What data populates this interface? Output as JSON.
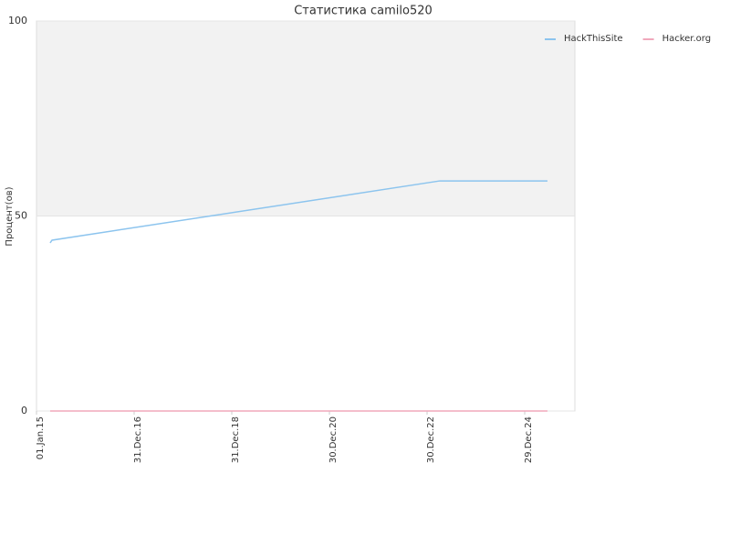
{
  "chart_data": {
    "type": "line",
    "title": "Статистика camilo520",
    "y_label": "Процент(ов)",
    "x": [
      "2015-04-13",
      "2015-04-27",
      "2023-04-04",
      "2025-06-17"
    ],
    "series": [
      {
        "name": "HackThisSite",
        "color": "#8cc4ee",
        "values": [
          43.1,
          43.8,
          59,
          59
        ]
      },
      {
        "name": "Hacker.org",
        "color": "#f0a8bc",
        "values": [
          0,
          0,
          0,
          0
        ]
      }
    ],
    "xlim": [
      "2015-01-01",
      "2026-01-08"
    ],
    "xticks": [
      {
        "value": "2015-01-01",
        "label": "01.Jan.15"
      },
      {
        "value": "2016-12-31",
        "label": "31.Dec.16"
      },
      {
        "value": "2018-12-31",
        "label": "31.Dec.18"
      },
      {
        "value": "2020-12-30",
        "label": "30.Dec.20"
      },
      {
        "value": "2022-12-30",
        "label": "30.Dec.22"
      },
      {
        "value": "2024-12-29",
        "label": "29.Dec.24"
      }
    ],
    "ylim": [
      0,
      100
    ],
    "yticks": [
      0,
      50,
      100
    ],
    "plot_band": [
      50,
      100
    ],
    "band_color": "#f2f2f2",
    "grid": true,
    "legend": "top-right"
  }
}
